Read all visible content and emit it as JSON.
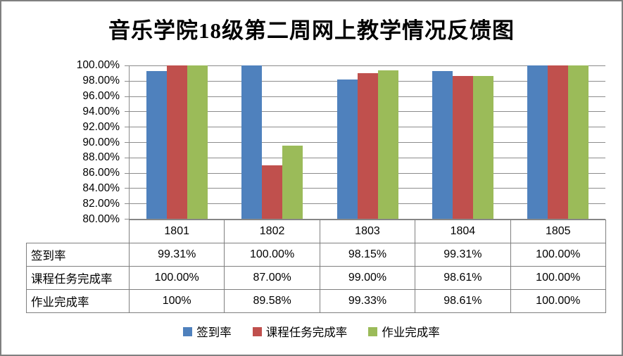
{
  "title": "音乐学院18级第二周网上教学情况反馈图",
  "chart_data": {
    "type": "bar",
    "title": "音乐学院18级第二周网上教学情况反馈图",
    "categories": [
      "1801",
      "1802",
      "1803",
      "1804",
      "1805"
    ],
    "series": [
      {
        "name": "签到率",
        "color": "#4F81BD",
        "values": [
          99.31,
          100.0,
          98.15,
          99.31,
          100.0
        ],
        "labels": [
          "99.31%",
          "100.00%",
          "98.15%",
          "99.31%",
          "100.00%"
        ]
      },
      {
        "name": "课程任务完成率",
        "color": "#C0504D",
        "values": [
          100.0,
          87.0,
          99.0,
          98.61,
          100.0
        ],
        "labels": [
          "100.00%",
          "87.00%",
          "99.00%",
          "98.61%",
          "100.00%"
        ]
      },
      {
        "name": "作业完成率",
        "color": "#9BBB59",
        "values": [
          100,
          89.58,
          99.33,
          98.61,
          100.0
        ],
        "labels": [
          "100%",
          "89.58%",
          "99.33%",
          "98.61%",
          "100.00%"
        ]
      }
    ],
    "ylim": [
      80,
      100
    ],
    "ytick_step": 2,
    "ytick_labels": [
      "100.00%",
      "98.00%",
      "96.00%",
      "94.00%",
      "92.00%",
      "90.00%",
      "88.00%",
      "86.00%",
      "84.00%",
      "82.00%",
      "80.00%"
    ],
    "grid": true,
    "legend_position": "bottom",
    "data_table_shown": true,
    "style": {
      "gridline_color": "#8C8C8C",
      "axis_color": "#8C8C8C",
      "table_border_color": "#7F7F7F",
      "frame_border_color": "#808080"
    }
  }
}
